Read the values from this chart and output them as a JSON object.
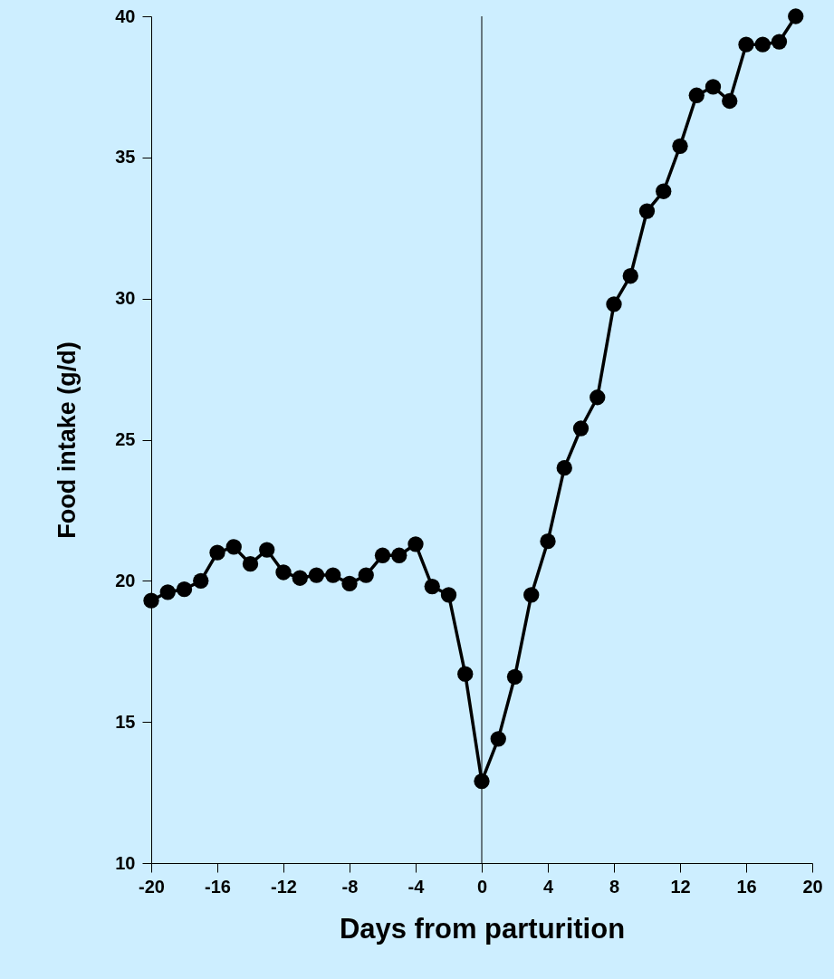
{
  "chart_data": {
    "type": "line",
    "xlabel": "Days from parturition",
    "ylabel": "Food intake (g/d)",
    "x": [
      -20,
      -19,
      -18,
      -17,
      -16,
      -15,
      -14,
      -13,
      -12,
      -11,
      -10,
      -9,
      -8,
      -7,
      -6,
      -5,
      -4,
      -3,
      -2,
      -1,
      0,
      1,
      2,
      3,
      4,
      5,
      6,
      7,
      8,
      9,
      10,
      11,
      12,
      13,
      14,
      15,
      16,
      17,
      18,
      19
    ],
    "series": [
      {
        "color": "#000000",
        "values": [
          19.3,
          19.6,
          19.7,
          20.0,
          21.0,
          21.2,
          20.6,
          21.1,
          20.3,
          20.1,
          20.2,
          20.2,
          19.9,
          20.2,
          20.9,
          20.9,
          21.3,
          19.8,
          19.5,
          16.7,
          12.9,
          14.4,
          16.6,
          19.5,
          21.4,
          24.0,
          25.4,
          26.5,
          29.8,
          30.8,
          33.1,
          33.8,
          35.4,
          37.2,
          37.5,
          37.0,
          39.0,
          39.0,
          39.1,
          40.0
        ]
      }
    ],
    "xlim": [
      -20,
      20
    ],
    "xticks": [
      -20,
      -16,
      -12,
      -8,
      -4,
      0,
      4,
      8,
      12,
      16,
      20
    ],
    "ylim": [
      10,
      40
    ],
    "yticks": [
      10,
      15,
      20,
      25,
      30,
      35,
      40
    ],
    "ref_lines": [
      {
        "axis": "x",
        "value": 0,
        "color": "#000000"
      }
    ],
    "marker": "circle",
    "line_style": "solid",
    "grid": false
  }
}
